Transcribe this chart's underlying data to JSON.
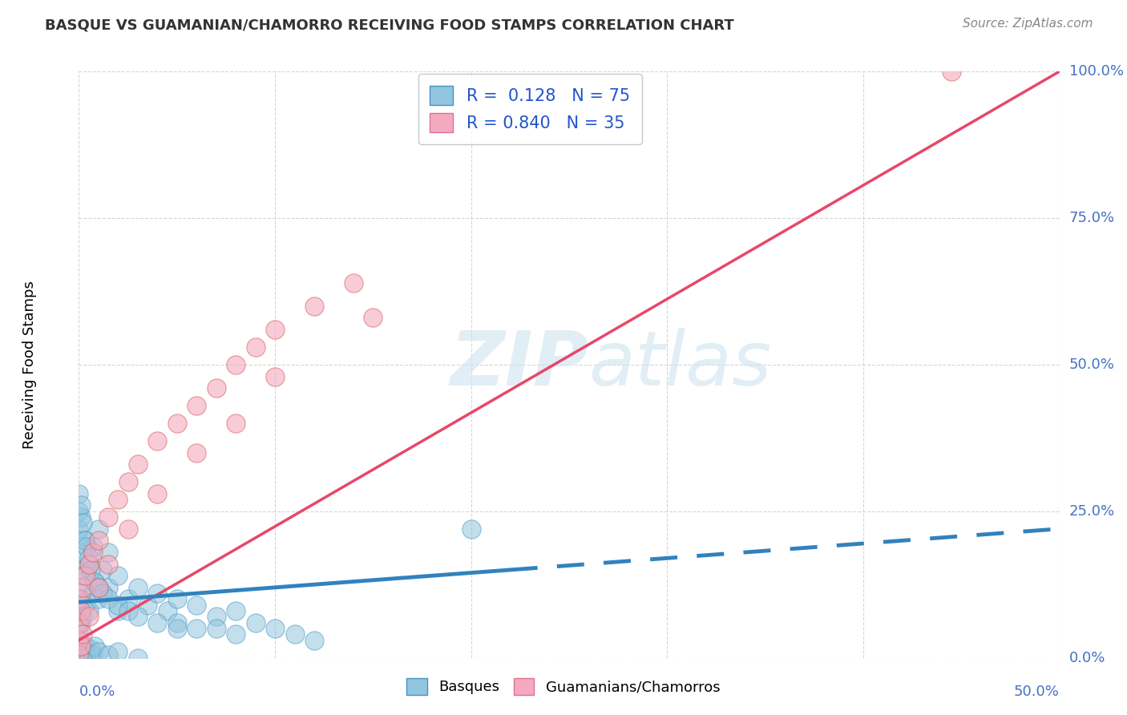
{
  "title": "BASQUE VS GUAMANIAN/CHAMORRO RECEIVING FOOD STAMPS CORRELATION CHART",
  "source": "Source: ZipAtlas.com",
  "ylabel": "Receiving Food Stamps",
  "xlim": [
    0.0,
    50.0
  ],
  "ylim": [
    0.0,
    100.0
  ],
  "watermark_zip": "ZIP",
  "watermark_atlas": "atlas",
  "basque_color": "#92c5de",
  "basque_edge_color": "#4393c3",
  "chamorro_color": "#f4a9c0",
  "chamorro_edge_color": "#d6604d",
  "basque_line_color": "#3182bd",
  "chamorro_line_color": "#e8476a",
  "background_color": "#ffffff",
  "grid_color": "#cccccc",
  "basque_line_x0": 0.0,
  "basque_line_y0": 9.5,
  "basque_line_x1": 50.0,
  "basque_line_y1": 22.0,
  "basque_solid_end_x": 22.0,
  "chamorro_line_x0": 0.0,
  "chamorro_line_y0": 3.0,
  "chamorro_line_x1": 50.0,
  "chamorro_line_y1": 100.0,
  "basque_scatter_x": [
    0.0,
    0.0,
    0.0,
    0.0,
    0.0,
    0.0,
    0.1,
    0.1,
    0.2,
    0.2,
    0.3,
    0.3,
    0.5,
    0.5,
    0.7,
    0.7,
    0.8,
    1.0,
    1.0,
    1.2,
    1.5,
    1.5,
    2.0,
    2.0,
    2.5,
    3.0,
    3.5,
    4.0,
    4.5,
    5.0,
    5.0,
    6.0,
    7.0,
    7.0,
    8.0,
    9.0,
    0.0,
    0.0,
    0.0,
    0.1,
    0.1,
    0.2,
    0.3,
    0.4,
    0.5,
    0.6,
    0.8,
    1.0,
    1.2,
    1.5,
    2.0,
    2.5,
    3.0,
    4.0,
    5.0,
    6.0,
    8.0,
    10.0,
    11.0,
    12.0,
    0.0,
    0.0,
    0.1,
    0.2,
    0.3,
    0.4,
    0.5,
    0.6,
    0.7,
    0.8,
    1.0,
    1.5,
    2.0,
    3.0,
    20.0
  ],
  "basque_scatter_y": [
    5.0,
    8.0,
    12.0,
    15.0,
    18.0,
    3.0,
    6.0,
    10.0,
    7.0,
    14.0,
    9.0,
    20.0,
    8.0,
    16.0,
    11.0,
    19.0,
    13.0,
    10.0,
    22.0,
    15.0,
    12.0,
    18.0,
    14.0,
    8.0,
    10.0,
    12.0,
    9.0,
    11.0,
    8.0,
    10.0,
    6.0,
    9.0,
    7.0,
    5.0,
    8.0,
    6.0,
    25.0,
    28.0,
    22.0,
    24.0,
    26.0,
    23.0,
    20.0,
    19.0,
    17.0,
    15.0,
    13.0,
    12.0,
    11.0,
    10.0,
    9.0,
    8.0,
    7.0,
    6.0,
    5.0,
    5.0,
    4.0,
    5.0,
    4.0,
    3.0,
    2.0,
    0.0,
    1.0,
    0.5,
    2.0,
    1.0,
    0.0,
    1.5,
    0.5,
    2.0,
    1.0,
    0.5,
    1.0,
    0.0,
    22.0
  ],
  "chamorro_scatter_x": [
    0.0,
    0.0,
    0.0,
    0.1,
    0.2,
    0.3,
    0.5,
    0.7,
    1.0,
    1.5,
    2.0,
    2.5,
    3.0,
    4.0,
    5.0,
    6.0,
    7.0,
    8.0,
    9.0,
    10.0,
    12.0,
    14.0,
    0.0,
    0.1,
    0.2,
    0.5,
    1.0,
    1.5,
    2.5,
    4.0,
    6.0,
    8.0,
    10.0,
    15.0,
    44.5
  ],
  "chamorro_scatter_y": [
    3.0,
    6.0,
    10.0,
    8.0,
    12.0,
    14.0,
    16.0,
    18.0,
    20.0,
    24.0,
    27.0,
    30.0,
    33.0,
    37.0,
    40.0,
    43.0,
    46.0,
    50.0,
    53.0,
    56.0,
    60.0,
    64.0,
    0.5,
    2.0,
    4.0,
    7.0,
    12.0,
    16.0,
    22.0,
    28.0,
    35.0,
    40.0,
    48.0,
    58.0,
    100.0
  ],
  "ytick_vals": [
    0,
    25,
    50,
    75,
    100
  ],
  "ytick_labels": [
    "0.0%",
    "25.0%",
    "50.0%",
    "75.0%",
    "100.0%"
  ],
  "xtick_left_label": "0.0%",
  "xtick_right_label": "50.0%"
}
